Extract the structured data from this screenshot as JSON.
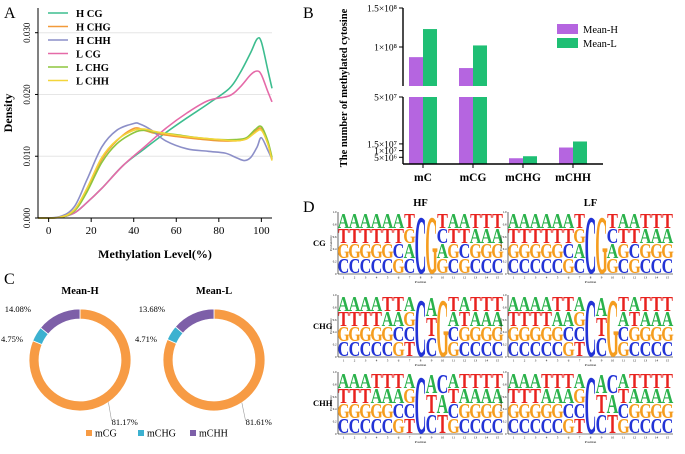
{
  "panels": {
    "a": "A",
    "b": "B",
    "c": "C",
    "d": "D"
  },
  "chart_data": [
    {
      "panel": "A",
      "type": "line",
      "xlabel": "Methylation Level(%)",
      "ylabel": "Density",
      "xlim": [
        -5,
        105
      ],
      "ylim": [
        0,
        0.034
      ],
      "xticks": [
        0,
        20,
        40,
        60,
        80,
        100
      ],
      "xtick_labels": [
        "0",
        "20",
        "40",
        "60",
        "80",
        "100"
      ],
      "yticks": [
        0,
        0.01,
        0.02,
        0.03
      ],
      "ytick_labels": [
        "0.000",
        "0.010",
        "0.020",
        "0.030"
      ],
      "legend_position": "top-left",
      "series": [
        {
          "name": "H CG",
          "color": "#3dbd8f",
          "x": [
            -5,
            5,
            12,
            18,
            25,
            35,
            45,
            55,
            65,
            75,
            85,
            90,
            95,
            98,
            100,
            103,
            105
          ],
          "y": [
            0,
            0.0001,
            0.0008,
            0.0025,
            0.0048,
            0.0085,
            0.0112,
            0.0138,
            0.0162,
            0.0185,
            0.021,
            0.0235,
            0.0268,
            0.029,
            0.0285,
            0.024,
            0.021
          ]
        },
        {
          "name": "H CHG",
          "color": "#f29a3a",
          "x": [
            -5,
            5,
            12,
            18,
            25,
            32,
            40,
            45,
            50,
            60,
            70,
            80,
            88,
            93,
            97,
            100,
            103,
            105
          ],
          "y": [
            0,
            0.0001,
            0.0012,
            0.0045,
            0.0095,
            0.0125,
            0.0145,
            0.0142,
            0.0137,
            0.0132,
            0.0128,
            0.0125,
            0.0125,
            0.0128,
            0.014,
            0.0145,
            0.0122,
            0.0095
          ]
        },
        {
          "name": "H CHH",
          "color": "#8c8fc8",
          "x": [
            -5,
            5,
            12,
            18,
            25,
            32,
            40,
            43,
            48,
            55,
            65,
            75,
            83,
            88,
            92,
            95,
            98,
            100,
            103,
            105
          ],
          "y": [
            0,
            0.0002,
            0.0018,
            0.0062,
            0.0115,
            0.0142,
            0.0153,
            0.0152,
            0.0143,
            0.0125,
            0.0112,
            0.0108,
            0.0105,
            0.0098,
            0.0093,
            0.0098,
            0.0115,
            0.013,
            0.011,
            0.0095
          ]
        },
        {
          "name": "L CG",
          "color": "#e56aa8",
          "x": [
            -5,
            5,
            12,
            18,
            25,
            35,
            45,
            55,
            65,
            75,
            85,
            90,
            95,
            98,
            100,
            103,
            105
          ],
          "y": [
            0,
            0.0001,
            0.0008,
            0.0025,
            0.0048,
            0.0085,
            0.0115,
            0.0145,
            0.017,
            0.019,
            0.0198,
            0.0212,
            0.0232,
            0.0238,
            0.0232,
            0.0205,
            0.0188
          ]
        },
        {
          "name": "L CHG",
          "color": "#8ec63f",
          "x": [
            -5,
            5,
            12,
            18,
            25,
            32,
            40,
            45,
            50,
            60,
            70,
            80,
            88,
            93,
            97,
            100,
            103,
            105
          ],
          "y": [
            0,
            0.0001,
            0.0011,
            0.0042,
            0.009,
            0.012,
            0.0138,
            0.0142,
            0.0139,
            0.0135,
            0.013,
            0.0127,
            0.0127,
            0.013,
            0.0143,
            0.0148,
            0.0125,
            0.0098
          ]
        },
        {
          "name": "L CHH",
          "color": "#f3d53a",
          "x": [
            -5,
            5,
            12,
            18,
            25,
            32,
            40,
            45,
            50,
            60,
            70,
            80,
            88,
            93,
            97,
            100,
            103,
            105
          ],
          "y": [
            0,
            0.0001,
            0.0013,
            0.0048,
            0.0098,
            0.0126,
            0.0142,
            0.0144,
            0.014,
            0.0134,
            0.013,
            0.0127,
            0.0125,
            0.0128,
            0.0138,
            0.0142,
            0.012,
            0.0093
          ]
        }
      ]
    },
    {
      "panel": "B",
      "type": "bar",
      "ylabel": "The number of methylated cytosine",
      "categories": [
        "mC",
        "mCG",
        "mCHG",
        "mCHH"
      ],
      "series": [
        {
          "name": "Mean-H",
          "color": "#b565e0",
          "values": [
            87000000,
            73000000,
            4300000,
            12300000
          ]
        },
        {
          "name": "Mean-L",
          "color": "#1fbf74",
          "values": [
            123000000,
            102000000,
            5800000,
            16800000
          ]
        }
      ],
      "axis_break": {
        "lower": [
          0,
          50000000
        ],
        "upper": [
          50000000,
          150000000
        ]
      },
      "lower_ticks": [
        5000000,
        10000000,
        15000000,
        50000000
      ],
      "lower_tick_labels": [
        "5×10⁶",
        "1×10⁷",
        "1.5×10⁷",
        "5×10⁷"
      ],
      "upper_ticks": [
        100000000,
        150000000
      ],
      "upper_tick_labels": [
        "1×10⁸",
        "1.5×10⁸"
      ],
      "legend_position": "top-right"
    },
    {
      "panel": "C",
      "type": "pie",
      "subtype": "donut",
      "categories": [
        "mCG",
        "mCHG",
        "mCHH"
      ],
      "colors": [
        "#f79b44",
        "#3cb1d0",
        "#7d5fa8"
      ],
      "charts": [
        {
          "title": "Mean-H",
          "values": [
            81.17,
            4.75,
            14.08
          ],
          "labels": [
            "81.17%",
            "4.75%",
            "14.08%"
          ]
        },
        {
          "title": "Mean-L",
          "values": [
            81.61,
            4.71,
            13.68
          ],
          "labels": [
            "81.61%",
            "4.71%",
            "13.68%"
          ]
        }
      ],
      "legend_position": "bottom"
    },
    {
      "panel": "D",
      "type": "other",
      "description_kind": "sequence-logo",
      "columns": [
        "HF",
        "LF"
      ],
      "rows": [
        "CG",
        "CHG",
        "CHH"
      ],
      "ylabel": "Probability",
      "xlabel": "Position",
      "positions": [
        1,
        2,
        3,
        4,
        5,
        6,
        7,
        8,
        9,
        10,
        11,
        12,
        13,
        14,
        15
      ],
      "yticks": [
        "0",
        "0.2",
        "0.4",
        "0.6",
        "0.8",
        "1.0"
      ],
      "base_colors": {
        "A": "#2bb24c",
        "T": "#e8231f",
        "G": "#f59d1f",
        "C": "#2233d6"
      },
      "motifs": {
        "CG": [
          [
            "A",
            "T",
            "G",
            "C"
          ],
          [
            "A",
            "T",
            "G",
            "C"
          ],
          [
            "A",
            "T",
            "G",
            "C"
          ],
          [
            "A",
            "T",
            "G",
            "C"
          ],
          [
            "A",
            "T",
            "G",
            "C"
          ],
          [
            "A",
            "T",
            "C",
            "G"
          ],
          [
            "T",
            "G",
            "A",
            "C"
          ],
          [
            "C"
          ],
          [
            "G"
          ],
          [
            "T",
            "C",
            "A",
            "G"
          ],
          [
            "A",
            "T",
            "G",
            "C"
          ],
          [
            "A",
            "T",
            "C",
            "G"
          ],
          [
            "T",
            "A",
            "G",
            "C"
          ],
          [
            "T",
            "A",
            "G",
            "C"
          ],
          [
            "T",
            "A",
            "G",
            "C"
          ]
        ],
        "CHG": [
          [
            "A",
            "T",
            "G",
            "C"
          ],
          [
            "A",
            "T",
            "G",
            "C"
          ],
          [
            "A",
            "T",
            "G",
            "C"
          ],
          [
            "A",
            "T",
            "G",
            "C"
          ],
          [
            "T",
            "A",
            "G",
            "C"
          ],
          [
            "T",
            "A",
            "C",
            "G"
          ],
          [
            "A",
            "G",
            "C",
            "T"
          ],
          [
            "C"
          ],
          [
            "A",
            "T",
            "C"
          ],
          [
            "G"
          ],
          [
            "T",
            "A",
            "C",
            "G"
          ],
          [
            "A",
            "T",
            "G",
            "C"
          ],
          [
            "T",
            "A",
            "G",
            "C"
          ],
          [
            "T",
            "A",
            "G",
            "C"
          ],
          [
            "T",
            "A",
            "G",
            "C"
          ]
        ],
        "CHH": [
          [
            "A",
            "T",
            "G",
            "C"
          ],
          [
            "A",
            "T",
            "G",
            "C"
          ],
          [
            "A",
            "T",
            "G",
            "C"
          ],
          [
            "T",
            "A",
            "G",
            "C"
          ],
          [
            "T",
            "A",
            "G",
            "C"
          ],
          [
            "T",
            "A",
            "C",
            "G"
          ],
          [
            "A",
            "G",
            "C",
            "T"
          ],
          [
            "C"
          ],
          [
            "A",
            "T",
            "C"
          ],
          [
            "C",
            "A",
            "T"
          ],
          [
            "A",
            "T",
            "C",
            "G"
          ],
          [
            "T",
            "A",
            "G",
            "C"
          ],
          [
            "T",
            "A",
            "G",
            "C"
          ],
          [
            "T",
            "A",
            "G",
            "C"
          ],
          [
            "T",
            "A",
            "G",
            "C"
          ]
        ]
      }
    }
  ]
}
